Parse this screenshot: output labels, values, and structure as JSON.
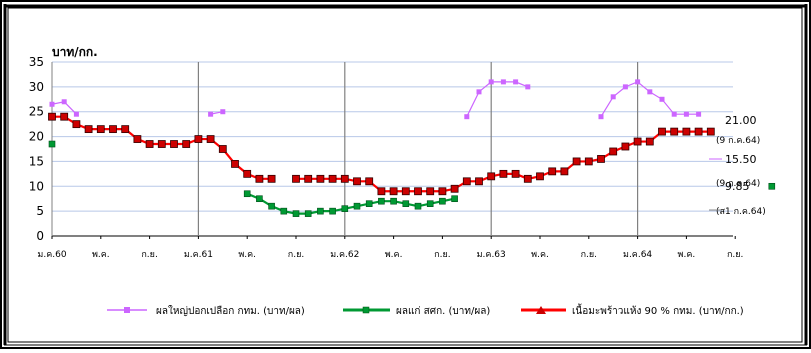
{
  "chart_data": {
    "type": "line",
    "y_unit": "บาท/กก.",
    "ylim": [
      0,
      35
    ],
    "yticks": [
      0,
      5,
      10,
      15,
      20,
      25,
      30,
      35
    ],
    "grid": true,
    "legend_position": "bottom",
    "x_labels": [
      {
        "i": 0,
        "label": "ม.ค.60"
      },
      {
        "i": 4,
        "label": "พ.ค."
      },
      {
        "i": 8,
        "label": "ก.ย."
      },
      {
        "i": 12,
        "label": "ม.ค.61"
      },
      {
        "i": 16,
        "label": "พ.ค."
      },
      {
        "i": 20,
        "label": "ก.ย."
      },
      {
        "i": 24,
        "label": "ม.ค.62"
      },
      {
        "i": 28,
        "label": "พ.ค."
      },
      {
        "i": 32,
        "label": "ก.ย."
      },
      {
        "i": 36,
        "label": "ม.ค.63"
      },
      {
        "i": 40,
        "label": "พ.ค."
      },
      {
        "i": 44,
        "label": "ก.ย."
      },
      {
        "i": 48,
        "label": "ม.ค.64"
      },
      {
        "i": 52,
        "label": "พ.ค."
      },
      {
        "i": 56,
        "label": "ก.ย."
      }
    ],
    "series": [
      {
        "name": "ผลใหญ่ปอกเปลือก กทม. (บาท/ผล)",
        "color": "#cc66ff",
        "marker": "square",
        "values": [
          26.5,
          27,
          24.5,
          null,
          null,
          null,
          null,
          null,
          null,
          null,
          null,
          null,
          null,
          24.5,
          25,
          null,
          null,
          null,
          null,
          null,
          null,
          null,
          null,
          null,
          null,
          null,
          null,
          null,
          null,
          null,
          null,
          null,
          null,
          null,
          24,
          29,
          31,
          31,
          31,
          30,
          null,
          null,
          null,
          null,
          null,
          24,
          28,
          30,
          31,
          29,
          27.5,
          24.5,
          24.5,
          24.5,
          null,
          null,
          null,
          null,
          null
        ]
      },
      {
        "name": "ผลแก่ สศก. (บาท/ผล)",
        "color": "#009933",
        "marker": "square",
        "values": [
          18.5,
          null,
          null,
          null,
          null,
          null,
          null,
          null,
          null,
          null,
          null,
          null,
          null,
          null,
          null,
          null,
          8.5,
          7.5,
          6,
          5,
          4.5,
          4.5,
          5,
          5,
          5.5,
          6,
          6.5,
          7,
          7,
          6.5,
          6,
          6.5,
          7,
          7.5,
          null,
          null,
          null,
          null,
          null,
          null,
          null,
          null,
          null,
          null,
          null,
          null,
          null,
          null,
          null,
          null,
          null,
          null,
          null,
          null,
          null,
          null,
          null,
          null,
          null,
          10
        ]
      },
      {
        "name": "เนื้อมะพร้าวแห้ง 90 % กทม. (บาท/กก.)",
        "color": "#ff0000",
        "marker": "triangle",
        "values": [
          24,
          24,
          22.5,
          21.5,
          21.5,
          21.5,
          21.5,
          19.5,
          18.5,
          18.5,
          18.5,
          18.5,
          19.5,
          19.5,
          17.5,
          14.5,
          12.5,
          11.5,
          11.5,
          null,
          11.5,
          11.5,
          11.5,
          11.5,
          11.5,
          11,
          11,
          9,
          9,
          9,
          9,
          9,
          9,
          9.5,
          11,
          11,
          12,
          12.5,
          12.5,
          11.5,
          12,
          13,
          13,
          15,
          15,
          15.5,
          17,
          18,
          19,
          19,
          21,
          21,
          21,
          21,
          21
        ]
      }
    ],
    "end_labels": [
      {
        "value": "21.00",
        "date": "(9 ก.ค.64)"
      },
      {
        "value": "15.50",
        "date": "(9 ก.ค.64)"
      },
      {
        "value": "9.85",
        "date": "(ส1 ก.ค.64)"
      }
    ]
  }
}
